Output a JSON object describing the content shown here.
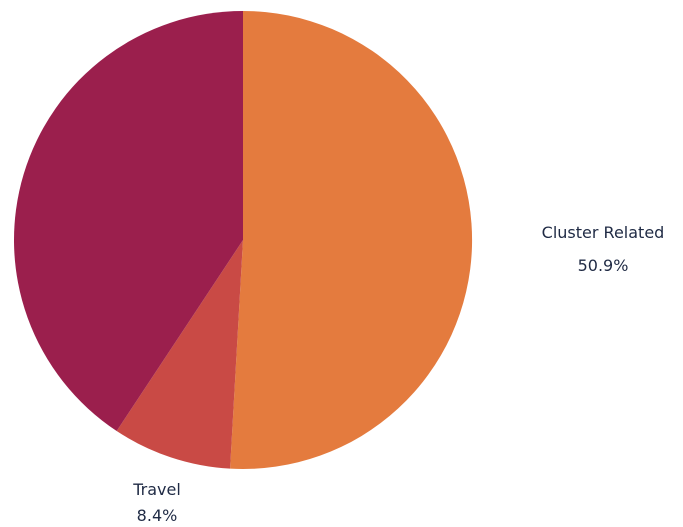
{
  "chart_data": {
    "type": "pie",
    "title": "",
    "start_angle_deg": 0,
    "direction": "clockwise",
    "slices": [
      {
        "label": "Cluster Related",
        "value": 50.9,
        "value_label": "50.9%",
        "color": "#e47b3e",
        "show_label": true
      },
      {
        "label": "Travel",
        "value": 8.4,
        "value_label": "8.4%",
        "color": "#c94a45",
        "show_label": true
      },
      {
        "label": "",
        "value": 40.7,
        "value_label": "",
        "color": "#9b1f4d",
        "show_label": false
      }
    ]
  }
}
